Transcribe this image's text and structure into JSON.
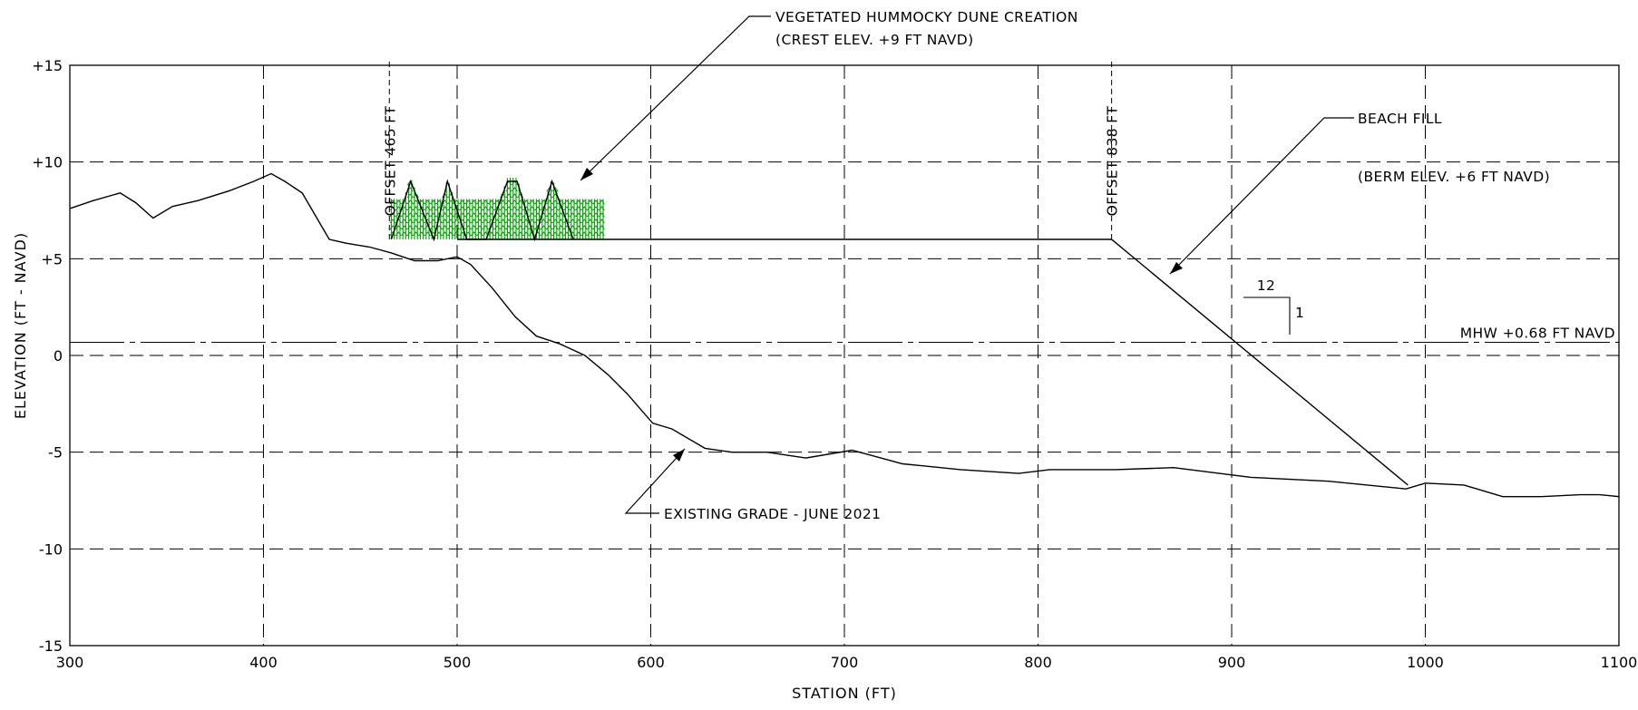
{
  "chart_data": {
    "type": "line",
    "title": "",
    "xlabel": "STATION (FT)",
    "ylabel": "ELEVATION (FT - NAVD)",
    "xlim": [
      300,
      1100
    ],
    "ylim": [
      -15,
      15
    ],
    "grid": "dashed",
    "x_ticks": [
      300,
      400,
      500,
      600,
      700,
      800,
      900,
      1000,
      1100
    ],
    "x_tick_labels": [
      "300",
      "400",
      "500",
      "600",
      "700",
      "800",
      "900",
      "1000",
      "1100"
    ],
    "y_ticks": [
      15,
      10,
      5,
      0,
      -5,
      -10,
      -15
    ],
    "y_tick_labels": [
      "+15",
      "+10",
      "+5",
      "0",
      "-5",
      "-10",
      "-15"
    ],
    "series": [
      {
        "name": "EXISTING GRADE - JUNE 2021",
        "x": [
          300,
          312,
          326,
          334,
          343,
          353,
          366,
          382,
          395,
          404,
          411,
          420,
          427,
          434,
          443,
          455,
          466,
          478,
          490,
          500,
          507,
          518,
          530,
          541,
          553,
          566,
          578,
          588,
          601,
          611,
          628,
          642,
          660,
          680,
          704,
          730,
          760,
          790,
          806,
          840,
          870,
          910,
          950,
          990,
          1000,
          1020,
          1040,
          1060,
          1080,
          1090,
          1100
        ],
        "y": [
          7.6,
          8.0,
          8.4,
          7.9,
          7.1,
          7.7,
          8.0,
          8.5,
          9.0,
          9.4,
          9.0,
          8.4,
          7.2,
          6.0,
          5.8,
          5.6,
          5.3,
          4.9,
          4.9,
          5.1,
          4.7,
          3.5,
          2.0,
          1.0,
          0.6,
          0.0,
          -1.0,
          -2.0,
          -3.5,
          -3.8,
          -4.8,
          -5.0,
          -5.0,
          -5.3,
          -4.9,
          -5.6,
          -5.9,
          -6.1,
          -5.9,
          -5.9,
          -5.8,
          -6.3,
          -6.5,
          -6.9,
          -6.6,
          -6.7,
          -7.3,
          -7.3,
          -7.2,
          -7.2,
          -7.3
        ]
      },
      {
        "name": "BEACH FILL",
        "x": [
          500,
          504,
          838,
          991
        ],
        "y": [
          6.0,
          6.0,
          6.0,
          -6.7
        ]
      },
      {
        "name": "VEGETATED HUMMOCKY DUNE CREATION",
        "x": [
          466,
          476,
          488,
          495,
          505,
          515,
          526,
          531,
          540,
          549,
          560
        ],
        "y": [
          6.0,
          9.0,
          6.0,
          9.0,
          6.0,
          6.0,
          9.0,
          9.0,
          6.0,
          9.0,
          6.0
        ]
      }
    ],
    "dune_vegetation_x": [
      466,
      576
    ],
    "dune_vegetation_base_y": 6.0,
    "dune_vegetation_top_y": 7.9,
    "mhw_y": 0.68,
    "offset_lines_x": [
      465,
      838
    ],
    "slope_h": 12,
    "slope_v": 1,
    "annotations": {
      "dune_line1": "VEGETATED HUMMOCKY DUNE CREATION",
      "dune_line2": "(CREST ELEV. +9 FT NAVD)",
      "offset1": "OFFSET 465 FT",
      "offset2": "OFFSET 838 FT",
      "beach_line1": "BEACH FILL",
      "beach_line2": "(BERM ELEV. +6 FT NAVD)",
      "mhw": "MHW +0.68 FT NAVD",
      "existing": "EXISTING GRADE - JUNE 2021",
      "slope_h_label": "12",
      "slope_v_label": "1"
    },
    "colors": {
      "line": "#000000",
      "grid": "#000000",
      "vegetation": "#00a000"
    }
  }
}
